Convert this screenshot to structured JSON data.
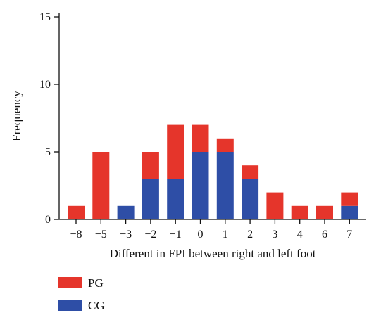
{
  "chart_data": {
    "type": "bar",
    "stacked": true,
    "categories": [
      "−8",
      "−5",
      "−3",
      "−2",
      "−1",
      "0",
      "1",
      "2",
      "3",
      "4",
      "6",
      "7"
    ],
    "series": [
      {
        "name": "CG",
        "values": [
          0,
          0,
          1,
          3,
          3,
          5,
          5,
          3,
          0,
          0,
          0,
          1
        ],
        "color": "#2e4ea6"
      },
      {
        "name": "PG",
        "values": [
          1,
          5,
          0,
          2,
          4,
          2,
          1,
          1,
          2,
          1,
          1,
          1
        ],
        "color": "#e5352b"
      }
    ],
    "xlabel": "Different in FPI between right and left foot",
    "ylabel": "Frequency",
    "ylim": [
      0,
      15
    ],
    "yticks": [
      0,
      5,
      10,
      15
    ],
    "grid": false,
    "legend_position": "bottom-left",
    "legend_order": [
      "PG",
      "CG"
    ]
  }
}
